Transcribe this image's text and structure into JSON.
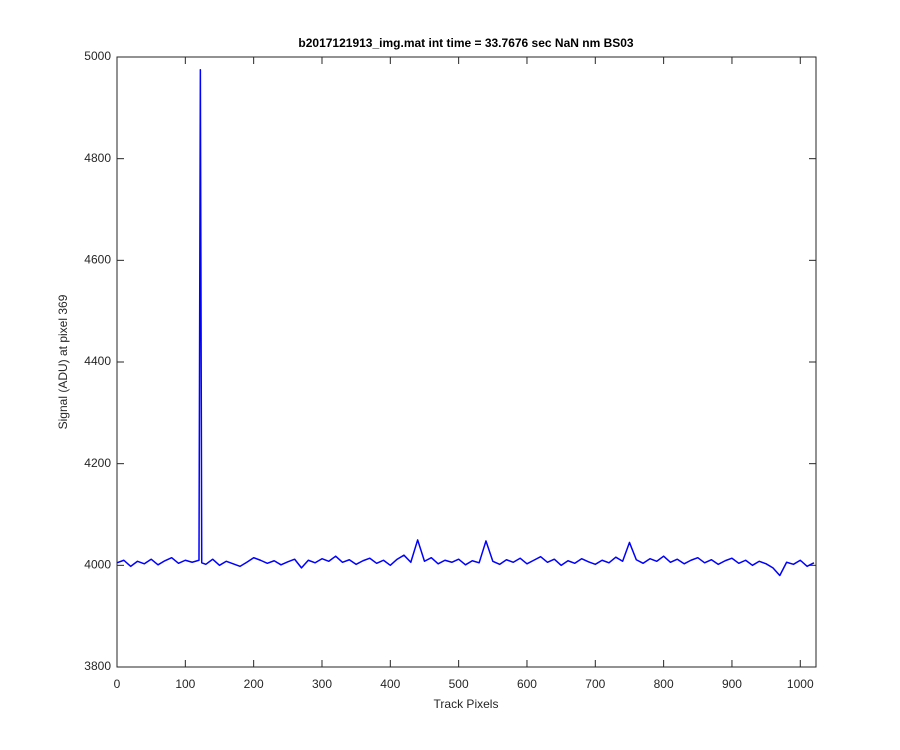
{
  "chart_data": {
    "type": "line",
    "title": "b2017121913_img.mat int time = 33.7676 sec  NaN nm BS03",
    "x_label": "Track Pixels",
    "y_label": "Signal (ADU) at pixel 369",
    "x": [
      0,
      10,
      20,
      30,
      40,
      50,
      60,
      70,
      80,
      90,
      100,
      110,
      120,
      122,
      124,
      130,
      140,
      150,
      160,
      170,
      180,
      190,
      200,
      210,
      220,
      230,
      240,
      250,
      260,
      270,
      280,
      290,
      300,
      310,
      320,
      330,
      340,
      350,
      360,
      370,
      380,
      390,
      400,
      410,
      420,
      430,
      440,
      450,
      460,
      470,
      480,
      490,
      500,
      510,
      520,
      530,
      540,
      550,
      560,
      570,
      580,
      590,
      600,
      610,
      620,
      630,
      640,
      650,
      660,
      670,
      680,
      690,
      700,
      710,
      720,
      730,
      740,
      750,
      760,
      770,
      780,
      790,
      800,
      810,
      820,
      830,
      840,
      850,
      860,
      870,
      880,
      890,
      900,
      910,
      920,
      930,
      940,
      950,
      960,
      970,
      980,
      990,
      1000,
      1010,
      1020
    ],
    "series": [
      {
        "color": "#0000ff",
        "values": [
          4005,
          4010,
          3998,
          4008,
          4003,
          4012,
          4001,
          4009,
          4015,
          4004,
          4010,
          4006,
          4010,
          4975,
          4005,
          4002,
          4012,
          4000,
          4008,
          4003,
          3998,
          4006,
          4015,
          4010,
          4004,
          4009,
          4001,
          4007,
          4012,
          3995,
          4010,
          4005,
          4013,
          4008,
          4018,
          4006,
          4011,
          4002,
          4009,
          4014,
          4004,
          4010,
          4000,
          4012,
          4020,
          4006,
          4050,
          4008,
          4015,
          4003,
          4010,
          4006,
          4012,
          4001,
          4009,
          4005,
          4048,
          4008,
          4002,
          4011,
          4006,
          4014,
          4003,
          4010,
          4017,
          4006,
          4012,
          4000,
          4009,
          4004,
          4013,
          4007,
          4002,
          4010,
          4005,
          4016,
          4008,
          4045,
          4011,
          4004,
          4013,
          4008,
          4018,
          4006,
          4012,
          4003,
          4010,
          4015,
          4005,
          4011,
          4002,
          4009,
          4014,
          4004,
          4010,
          4000,
          4008,
          4003,
          3995,
          3980,
          4006,
          4002,
          4010,
          3998,
          4005
        ]
      }
    ],
    "xlim": [
      0,
      1023
    ],
    "xticks": [
      0,
      100,
      200,
      300,
      400,
      500,
      600,
      700,
      800,
      900,
      1000
    ],
    "ylim": [
      3800,
      5000
    ],
    "yticks": [
      3800,
      4000,
      4200,
      4400,
      4600,
      4800,
      5000
    ]
  }
}
